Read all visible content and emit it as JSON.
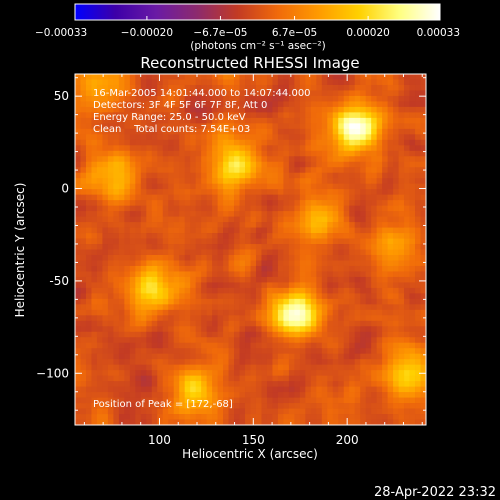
{
  "chart_data": {
    "type": "heatmap",
    "title": "Reconstructed RHESSI Image",
    "xlabel": "Heliocentric X (arcsec)",
    "ylabel": "Heliocentric Y (arcsec)",
    "x_range": [
      55,
      242
    ],
    "y_range": [
      -128,
      62
    ],
    "x_ticks": [
      {
        "value": 100,
        "label": "100"
      },
      {
        "value": 150,
        "label": "150"
      },
      {
        "value": 200,
        "label": "200"
      }
    ],
    "y_ticks": [
      {
        "value": 50,
        "label": "50"
      },
      {
        "value": 0,
        "label": "0"
      },
      {
        "value": -50,
        "label": "-50"
      },
      {
        "value": -100,
        "label": "−100"
      }
    ],
    "colorbar": {
      "range": [
        -0.00033,
        0.00033
      ],
      "ticks": [
        {
          "value": -0.00033,
          "label": "−0.00033"
        },
        {
          "value": -0.0002,
          "label": "−0.00020"
        },
        {
          "value": -6.7e-05,
          "label": "−6.7e−05"
        },
        {
          "value": 6.7e-05,
          "label": "6.7e−05"
        },
        {
          "value": 0.0002,
          "label": "0.00020"
        },
        {
          "value": 0.00033,
          "label": "0.00033"
        }
      ],
      "unit_label": "(photons cm⁻² s⁻¹ asec⁻²)",
      "colors": [
        "#0000ff",
        "#3d00a8",
        "#6a1aa5",
        "#8c2a6e",
        "#c23a24",
        "#f06a0a",
        "#ff9a00",
        "#ffd000",
        "#ffff80",
        "#ffffff"
      ]
    },
    "annotations": [
      "16-Mar-2005 14:01:44.000 to 14:07:44.000",
      "Detectors: 3F 4F 5F 6F 7F 8F, Att 0",
      "Energy Range: 25.0 - 50.0 keV",
      "Clean    Total counts: 7.54E+03"
    ],
    "peak_text": "Position of Peak = [172,-68]",
    "peak": [
      172,
      -68
    ],
    "hotspots": [
      {
        "x": 172,
        "y": -68,
        "v": 0.00033
      },
      {
        "x": 205,
        "y": 33,
        "v": 0.0003
      },
      {
        "x": 140,
        "y": 12,
        "v": 0.00024
      },
      {
        "x": 75,
        "y": 8,
        "v": 0.0002
      },
      {
        "x": 98,
        "y": -55,
        "v": 0.00019
      },
      {
        "x": 232,
        "y": -100,
        "v": 0.00021
      },
      {
        "x": 120,
        "y": -108,
        "v": 0.00016
      },
      {
        "x": 185,
        "y": -18,
        "v": 0.00015
      },
      {
        "x": 225,
        "y": -30,
        "v": 0.00013
      },
      {
        "x": 70,
        "y": 55,
        "v": 0.00012
      }
    ]
  },
  "footer": {
    "timestamp": "28-Apr-2022 23:32"
  }
}
